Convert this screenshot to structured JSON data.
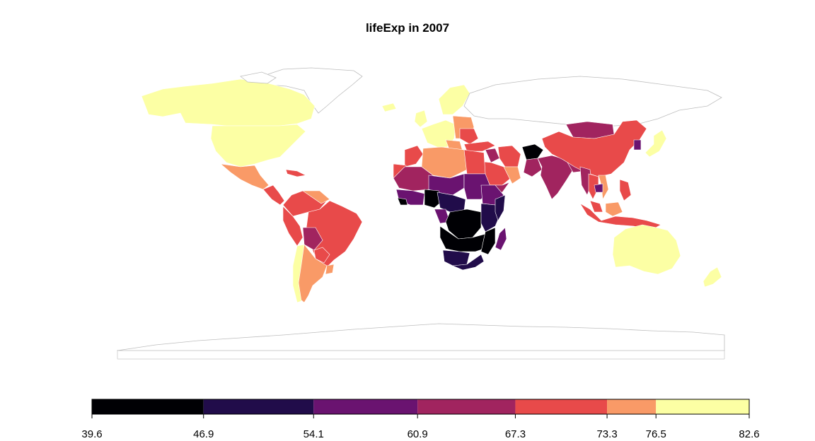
{
  "title": "lifeExp in 2007",
  "legend": {
    "breaks": [
      39.6,
      46.9,
      54.1,
      60.9,
      67.3,
      73.3,
      76.5,
      82.6
    ],
    "labels": [
      "39.6",
      "46.9",
      "54.1",
      "60.9",
      "67.3",
      "73.3",
      "76.5",
      "82.6"
    ],
    "colors": [
      "#000004",
      "#210c4a",
      "#6a1370",
      "#a1245f",
      "#e84a4a",
      "#f99a67",
      "#fcffa4"
    ]
  },
  "nodata_color": "#ffffff"
}
